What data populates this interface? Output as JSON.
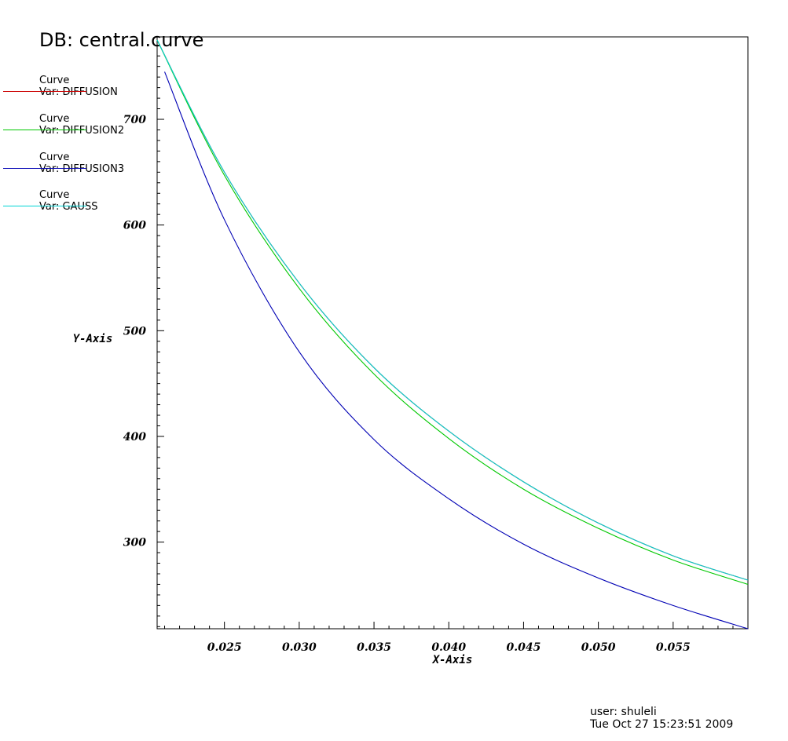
{
  "header": {
    "db_title": "DB: central.curve"
  },
  "legend": [
    {
      "name": "Curve",
      "var": "Var: DIFFUSION",
      "color": "#cc0000"
    },
    {
      "name": "Curve",
      "var": "Var: DIFFUSION2",
      "color": "#00c800"
    },
    {
      "name": "Curve",
      "var": "Var: DIFFUSION3",
      "color": "#0000b4"
    },
    {
      "name": "Curve",
      "var": "Var: GAUSS",
      "color": "#00d4d4"
    }
  ],
  "footer": {
    "user": "user: shuleli",
    "date": "Tue Oct 27 15:23:51 2009"
  },
  "chart_data": {
    "type": "line",
    "xlabel": "X-Axis",
    "ylabel": "Y-Axis",
    "xlim": [
      0.0205,
      0.06
    ],
    "ylim": [
      218,
      778
    ],
    "x_ticks": [
      0.025,
      0.03,
      0.035,
      0.04,
      0.045,
      0.05,
      0.055
    ],
    "x_tick_labels": [
      "0.025",
      "0.030",
      "0.035",
      "0.040",
      "0.045",
      "0.050",
      "0.055"
    ],
    "y_ticks": [
      300,
      400,
      500,
      600,
      700
    ],
    "y_tick_labels": [
      "300",
      "400",
      "500",
      "600",
      "700"
    ],
    "grid": false,
    "legend_placement": "left",
    "series": [
      {
        "name": "DIFFUSION",
        "color": "#cc0000",
        "x": [
          0.0205,
          0.025,
          0.03,
          0.035,
          0.04,
          0.045,
          0.05,
          0.055,
          0.06
        ],
        "y": [
          775,
          650,
          545,
          465,
          405,
          357,
          318,
          287,
          264
        ]
      },
      {
        "name": "DIFFUSION2",
        "color": "#00c800",
        "x": [
          0.0205,
          0.025,
          0.03,
          0.035,
          0.04,
          0.045,
          0.05,
          0.055,
          0.06
        ],
        "y": [
          775,
          647,
          540,
          459,
          398,
          350,
          313,
          283,
          260
        ]
      },
      {
        "name": "DIFFUSION3",
        "color": "#0000b4",
        "x": [
          0.021,
          0.025,
          0.03,
          0.035,
          0.04,
          0.045,
          0.05,
          0.055,
          0.06
        ],
        "y": [
          745,
          605,
          480,
          397,
          341,
          298,
          266,
          240,
          218
        ]
      },
      {
        "name": "GAUSS",
        "color": "#00d4d4",
        "x": [
          0.0205,
          0.025,
          0.03,
          0.035,
          0.04,
          0.045,
          0.05,
          0.055,
          0.06
        ],
        "y": [
          775,
          650,
          545,
          465,
          405,
          357,
          318,
          287,
          264
        ]
      }
    ]
  }
}
